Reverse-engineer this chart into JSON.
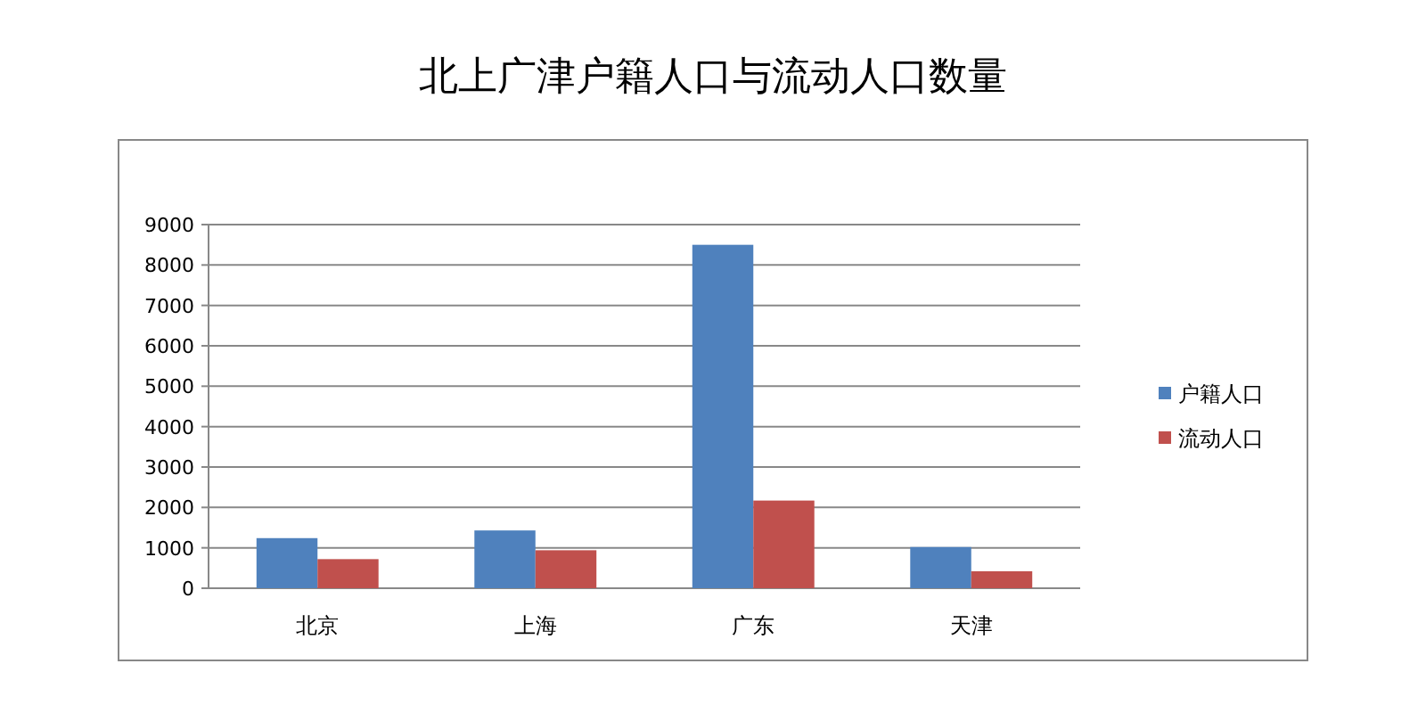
{
  "chart_data": {
    "type": "bar",
    "title": "北上广津户籍人口与流动人口数量",
    "categories": [
      "北京",
      "上海",
      "广东",
      "天津"
    ],
    "series": [
      {
        "name": "户籍人口",
        "color": "#4f81bd",
        "values": [
          1240,
          1430,
          8500,
          1020
        ]
      },
      {
        "name": "流动人口",
        "color": "#c0504d",
        "values": [
          720,
          940,
          2170,
          420
        ]
      }
    ],
    "ylim": [
      0,
      9000
    ],
    "yticks": [
      0,
      1000,
      2000,
      3000,
      4000,
      5000,
      6000,
      7000,
      8000,
      9000
    ],
    "grid": "y",
    "legend": "right"
  }
}
